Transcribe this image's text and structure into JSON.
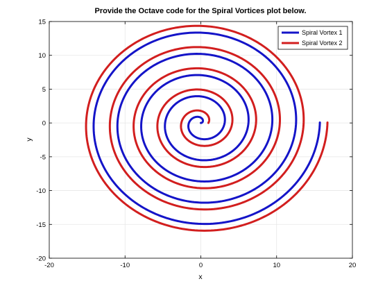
{
  "chart_data": {
    "type": "line",
    "title": "Provide the Octave code for the Spiral Vortices plot below.",
    "xlabel": "x",
    "ylabel": "y",
    "xlim": [
      -20,
      20
    ],
    "ylim": [
      -20,
      15
    ],
    "xticks": [
      -20,
      -10,
      0,
      10,
      20
    ],
    "yticks": [
      -20,
      -15,
      -10,
      -5,
      0,
      5,
      10,
      15
    ],
    "xtick_labels": [
      "-20",
      "-10",
      "0",
      "10",
      "20"
    ],
    "ytick_labels": [
      "-20",
      "-15",
      "-10",
      "-5",
      "0",
      "5",
      "10",
      "15"
    ],
    "grid": true,
    "legend_position": "top-right",
    "series": [
      {
        "name": "Spiral Vortex 1",
        "color": "#1414c8",
        "equation": "r = 0.5*theta, x = r*cos(theta), y = r*sin(theta), theta from 0 to 10*pi",
        "theta_range": [
          0,
          31.42
        ],
        "r_scale": 0.5,
        "phase": 0,
        "sample_points": [
          {
            "x": 0,
            "y": 0
          },
          {
            "x": -1.57,
            "y": 0
          },
          {
            "x": 3.14,
            "y": 0
          },
          {
            "x": -4.71,
            "y": 0
          },
          {
            "x": 6.28,
            "y": 0
          },
          {
            "x": 0,
            "y": -14.92
          },
          {
            "x": 15.71,
            "y": 0
          }
        ]
      },
      {
        "name": "Spiral Vortex 2",
        "color": "#d21e1e",
        "equation": "r = 0.5*theta + 1, x = r*cos(theta), y = r*sin(theta), theta from 0 to 10*pi",
        "theta_range": [
          0,
          31.42
        ],
        "r_scale": 0.5,
        "r_offset": 1,
        "phase": 0,
        "sample_points": [
          {
            "x": 1,
            "y": 0
          },
          {
            "x": 4.14,
            "y": 0
          },
          {
            "x": 7.28,
            "y": 0
          },
          {
            "x": 0,
            "y": -15.92
          },
          {
            "x": 16.71,
            "y": 0
          }
        ]
      }
    ]
  }
}
